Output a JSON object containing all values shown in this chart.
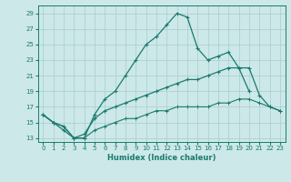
{
  "xlabel": "Humidex (Indice chaleur)",
  "bg_color": "#cce8e8",
  "grid_color": "#aacccc",
  "line_color": "#1a7a6e",
  "xlim": [
    -0.5,
    23.5
  ],
  "ylim": [
    12.5,
    30
  ],
  "yticks": [
    13,
    15,
    17,
    19,
    21,
    23,
    25,
    27,
    29
  ],
  "xticks": [
    0,
    1,
    2,
    3,
    4,
    5,
    6,
    7,
    8,
    9,
    10,
    11,
    12,
    13,
    14,
    15,
    16,
    17,
    18,
    19,
    20,
    21,
    22,
    23
  ],
  "line1_x": [
    0,
    1,
    2,
    3,
    4,
    5,
    6,
    7,
    8,
    9,
    10,
    11,
    12,
    13,
    14,
    15,
    16,
    17,
    18,
    19,
    20,
    21,
    22,
    23
  ],
  "line1_y": [
    16,
    15,
    14,
    13,
    13,
    16,
    18,
    19,
    21,
    23,
    25,
    26,
    27.5,
    29,
    28.5,
    24.5,
    23,
    23.5,
    24,
    22,
    19,
    null,
    null,
    null
  ],
  "line2_x": [
    0,
    1,
    2,
    3,
    4,
    5,
    6,
    7,
    8,
    9,
    10,
    11,
    12,
    13,
    14,
    15,
    16,
    17,
    18,
    19,
    20,
    21,
    22,
    23
  ],
  "line2_y": [
    16,
    15,
    14.5,
    13,
    13.5,
    15.5,
    16.5,
    17,
    17.5,
    18,
    18.5,
    19,
    19.5,
    20,
    20.5,
    20.5,
    21,
    21.5,
    22,
    22,
    22,
    18.5,
    17,
    16.5
  ],
  "line3_x": [
    0,
    1,
    2,
    3,
    4,
    5,
    6,
    7,
    8,
    9,
    10,
    11,
    12,
    13,
    14,
    15,
    16,
    17,
    18,
    19,
    20,
    21,
    22,
    23
  ],
  "line3_y": [
    16,
    15,
    14.5,
    13,
    13,
    14,
    14.5,
    15,
    15.5,
    15.5,
    16,
    16.5,
    16.5,
    17,
    17,
    17,
    17,
    17.5,
    17.5,
    18,
    18,
    17.5,
    17,
    16.5
  ]
}
